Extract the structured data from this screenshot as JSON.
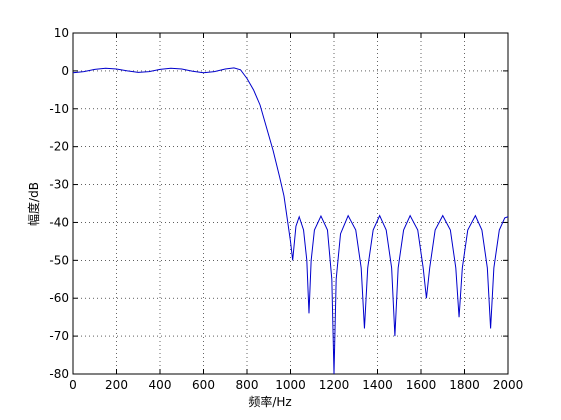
{
  "chart_data": {
    "type": "line",
    "xlabel": "频率/Hz",
    "ylabel": "幅度/dB",
    "x": [
      0,
      50,
      100,
      150,
      200,
      250,
      300,
      350,
      400,
      450,
      500,
      550,
      600,
      650,
      700,
      740,
      770,
      800,
      830,
      860,
      890,
      920,
      950,
      970,
      985,
      1000,
      1010,
      1025,
      1040,
      1060,
      1075,
      1085,
      1095,
      1110,
      1140,
      1170,
      1190,
      1200,
      1210,
      1230,
      1265,
      1300,
      1325,
      1340,
      1355,
      1380,
      1410,
      1440,
      1465,
      1480,
      1495,
      1520,
      1550,
      1585,
      1610,
      1625,
      1640,
      1665,
      1700,
      1735,
      1760,
      1775,
      1790,
      1815,
      1850,
      1880,
      1905,
      1920,
      1935,
      1960,
      1985,
      2000
    ],
    "series": [
      {
        "color": "#0000cc",
        "values": [
          -0.5,
          -0.2,
          0.4,
          0.7,
          0.5,
          0,
          -0.4,
          -0.2,
          0.4,
          0.7,
          0.5,
          -0.1,
          -0.5,
          -0.2,
          0.5,
          0.8,
          0.3,
          -2,
          -5,
          -9,
          -15,
          -21,
          -28,
          -33,
          -39,
          -45,
          -50,
          -41,
          -38.5,
          -42,
          -50,
          -64,
          -50,
          -42,
          -38.3,
          -42,
          -55,
          -80,
          -55,
          -43,
          -38.2,
          -42,
          -52,
          -68,
          -52,
          -42,
          -38.2,
          -42,
          -52,
          -70,
          -52,
          -42,
          -38.2,
          -42,
          -52,
          -60,
          -52,
          -42,
          -38.2,
          -42,
          -52,
          -65,
          -52,
          -42,
          -38.2,
          -42,
          -52,
          -68,
          -52,
          -42,
          -38.8,
          -38.5
        ]
      }
    ],
    "xlim": [
      0,
      2000
    ],
    "ylim": [
      -80,
      10
    ],
    "xticks": [
      0,
      200,
      400,
      600,
      800,
      1000,
      1200,
      1400,
      1600,
      1800,
      2000
    ],
    "yticks": [
      10,
      0,
      -10,
      -20,
      -30,
      -40,
      -50,
      -60,
      -70,
      -80
    ],
    "grid": true
  }
}
